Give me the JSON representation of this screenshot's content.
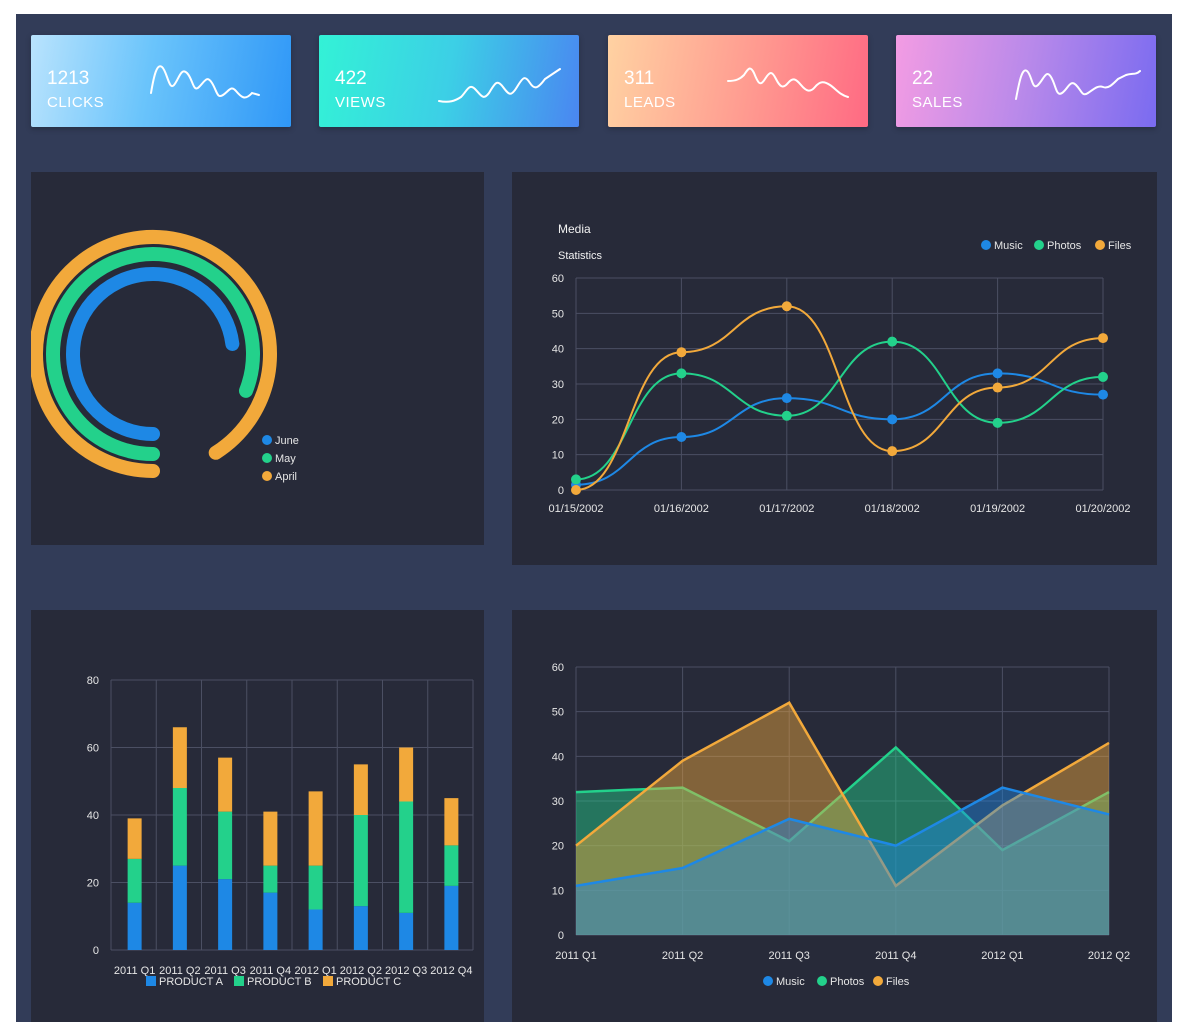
{
  "colors": {
    "blue": "#1e88e5",
    "green": "#23d18b",
    "orange": "#f2a93b",
    "panel": "#272a39",
    "background": "#323c58",
    "grid": "#4b4f63"
  },
  "kpis": [
    {
      "value": "1213",
      "label": "CLICKS"
    },
    {
      "value": "422",
      "label": "VIEWS"
    },
    {
      "value": "311",
      "label": "LEADS"
    },
    {
      "value": "22",
      "label": "SALES"
    }
  ],
  "chart_data": [
    {
      "type": "radialBar",
      "series": [
        {
          "name": "June",
          "value": 73
        },
        {
          "name": "May",
          "value": 81
        },
        {
          "name": "April",
          "value": 91
        }
      ],
      "legend": [
        "June",
        "May",
        "April"
      ]
    },
    {
      "type": "line",
      "title": "Media",
      "subtitle": "Statistics",
      "categories": [
        "01/15/2002",
        "01/16/2002",
        "01/17/2002",
        "01/18/2002",
        "01/19/2002",
        "01/20/2002"
      ],
      "x": [
        0,
        1,
        2,
        3,
        4,
        5
      ],
      "series": [
        {
          "name": "Music",
          "values": [
            1.5,
            15,
            26,
            20,
            33,
            27
          ]
        },
        {
          "name": "Photos",
          "values": [
            3,
            33,
            21,
            42,
            19,
            32
          ]
        },
        {
          "name": "Files",
          "values": [
            0,
            39,
            52,
            11,
            29,
            43
          ]
        }
      ],
      "ylim": [
        0,
        60
      ],
      "yticks": [
        0,
        10,
        20,
        30,
        40,
        50,
        60
      ],
      "legend": [
        "Music",
        "Photos",
        "Files"
      ],
      "grid": true
    },
    {
      "type": "bar",
      "stacked": true,
      "categories": [
        "2011 Q1",
        "2011 Q2",
        "2011 Q3",
        "2011 Q4",
        "2012 Q1",
        "2012 Q2",
        "2012 Q3",
        "2012 Q4"
      ],
      "series": [
        {
          "name": "PRODUCT A",
          "values": [
            14,
            25,
            21,
            17,
            12,
            13,
            11,
            19
          ]
        },
        {
          "name": "PRODUCT B",
          "values": [
            13,
            23,
            20,
            8,
            13,
            27,
            33,
            12
          ]
        },
        {
          "name": "PRODUCT C",
          "values": [
            12,
            18,
            16,
            16,
            22,
            15,
            16,
            14
          ]
        }
      ],
      "ylim": [
        0,
        80
      ],
      "yticks": [
        0,
        20,
        40,
        60,
        80
      ],
      "legend": [
        "PRODUCT A",
        "PRODUCT B",
        "PRODUCT C"
      ],
      "grid": true
    },
    {
      "type": "area",
      "categories": [
        "2011 Q1",
        "2011 Q2",
        "2011 Q3",
        "2011 Q4",
        "2012 Q1",
        "2012 Q2"
      ],
      "series": [
        {
          "name": "Music",
          "values": [
            11,
            15,
            26,
            20,
            33,
            27
          ]
        },
        {
          "name": "Photos",
          "values": [
            32,
            33,
            21,
            42,
            19,
            32
          ]
        },
        {
          "name": "Files",
          "values": [
            20,
            39,
            52,
            11,
            29,
            43
          ]
        }
      ],
      "ylim": [
        0,
        60
      ],
      "yticks": [
        0,
        10,
        20,
        30,
        40,
        50,
        60
      ],
      "legend": [
        "Music",
        "Photos",
        "Files"
      ],
      "grid": true
    }
  ]
}
